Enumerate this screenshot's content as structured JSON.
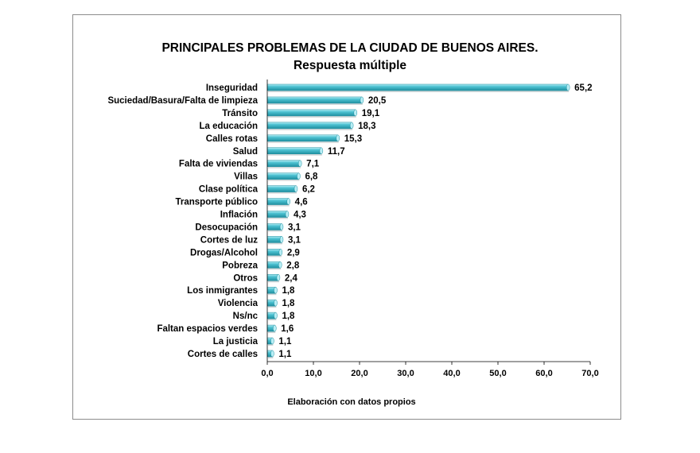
{
  "chart_data": {
    "type": "bar",
    "orientation": "horizontal",
    "title": "PRINCIPALES PROBLEMAS DE LA CIUDAD DE BUENOS AIRES.",
    "subtitle": "Respuesta múltiple",
    "note": "Elaboración con datos propios",
    "categories": [
      "Inseguridad",
      "Suciedad/Basura/Falta de limpieza",
      "Tránsito",
      "La educación",
      "Calles rotas",
      "Salud",
      "Falta de viviendas",
      "Villas",
      "Clase política",
      "Transporte público",
      "Inflación",
      "Desocupación",
      "Cortes de luz",
      "Drogas/Alcohol",
      "Pobreza",
      "Otros",
      "Los inmigrantes",
      "Violencia",
      "Ns/nc",
      "Faltan espacios verdes",
      "La justicia",
      "Cortes de calles"
    ],
    "values": [
      65.2,
      20.5,
      19.1,
      18.3,
      15.3,
      11.7,
      7.1,
      6.8,
      6.2,
      4.6,
      4.3,
      3.1,
      3.1,
      2.9,
      2.8,
      2.4,
      1.8,
      1.8,
      1.8,
      1.6,
      1.1,
      1.1
    ],
    "value_labels": [
      "65,2",
      "20,5",
      "19,1",
      "18,3",
      "15,3",
      "11,7",
      "7,1",
      "6,8",
      "6,2",
      "4,6",
      "4,3",
      "3,1",
      "3,1",
      "2,9",
      "2,8",
      "2,4",
      "1,8",
      "1,8",
      "1,8",
      "1,6",
      "1,1",
      "1,1"
    ],
    "xlim": [
      0,
      70
    ],
    "x_ticks": [
      0,
      10,
      20,
      30,
      40,
      50,
      60,
      70
    ],
    "x_tick_labels": [
      "0,0",
      "10,0",
      "20,0",
      "30,0",
      "40,0",
      "50,0",
      "60,0",
      "70,0"
    ],
    "grid": false,
    "legend": "none",
    "bar_color": "#4fc3d3",
    "bar_color_dark": "#1f8fa0",
    "bar_color_light": "#b8eef5"
  }
}
